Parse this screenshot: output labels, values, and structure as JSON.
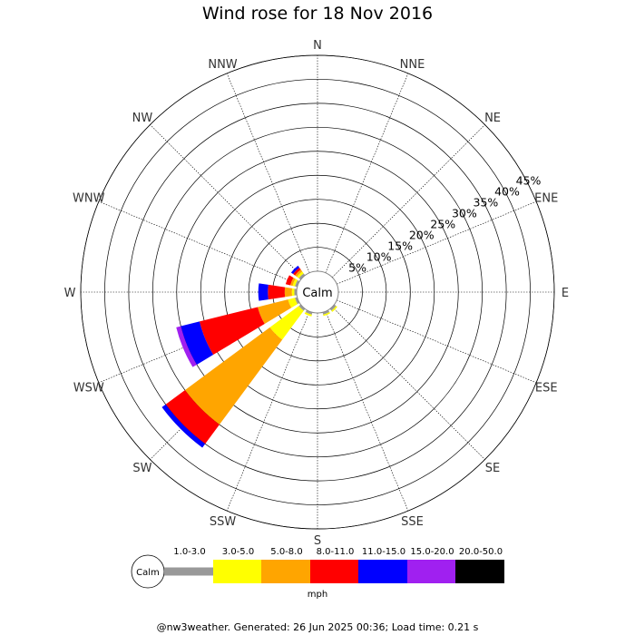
{
  "chart_data": {
    "type": "wind-rose",
    "title": "Wind rose for 18 Nov 2016",
    "directions": [
      "N",
      "NNE",
      "NE",
      "ENE",
      "E",
      "ESE",
      "SE",
      "SSE",
      "S",
      "SSW",
      "SW",
      "WSW",
      "W",
      "WNW",
      "NW",
      "NNW"
    ],
    "radial_ticks": [
      "5%",
      "10%",
      "15%",
      "20%",
      "25%",
      "30%",
      "35%",
      "40%",
      "45%"
    ],
    "radial_max_percent": 45,
    "center_label": "Calm",
    "unit_label": "mph",
    "speed_bins": [
      {
        "label": "1.0-3.0",
        "color": "#999999"
      },
      {
        "label": "3.0-5.0",
        "color": "#ffff00"
      },
      {
        "label": "5.0-8.0",
        "color": "#ffa500"
      },
      {
        "label": "8.0-11.0",
        "color": "#ff0000"
      },
      {
        "label": "11.0-15.0",
        "color": "#0000ff"
      },
      {
        "label": "15.0-20.0",
        "color": "#a020f0"
      },
      {
        "label": "20.0-50.0",
        "color": "#000000"
      }
    ],
    "frequencies_percent": {
      "SE": [
        0.5,
        0.3,
        0,
        0,
        0,
        0,
        0
      ],
      "SSE": [
        0.5,
        0.3,
        0,
        0,
        0,
        0,
        0
      ],
      "SSW": [
        0.5,
        0.4,
        0,
        0,
        0,
        0,
        0
      ],
      "SW": [
        0.5,
        7.5,
        22,
        5,
        1,
        0,
        0
      ],
      "WSW": [
        0.5,
        1.5,
        6.5,
        12.5,
        4,
        1,
        0
      ],
      "W": [
        0.5,
        0.5,
        1.5,
        3.5,
        2,
        0,
        0
      ],
      "WNW": [
        0.5,
        0.5,
        0.5,
        1,
        0,
        0,
        0
      ],
      "NW": [
        0.5,
        0.5,
        0.5,
        0.5,
        0.5,
        0,
        0
      ]
    }
  },
  "footer": "@nw3weather. Generated: 26 Jun 2025 00:36; Load time: 0.21 s"
}
